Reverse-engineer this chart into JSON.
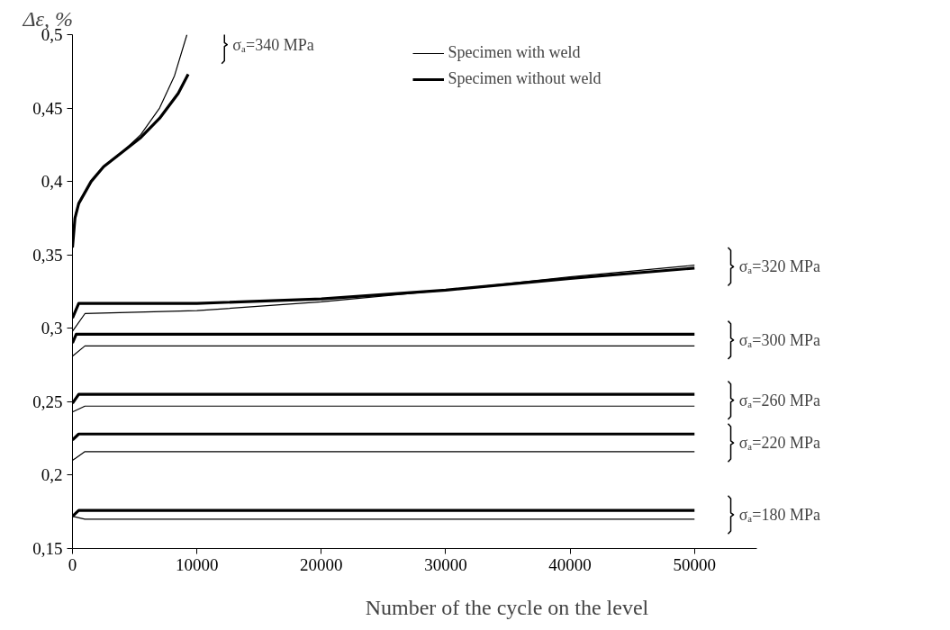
{
  "chart_data": {
    "type": "line",
    "xlabel": "Number of the cycle on the level",
    "ylabel": "Δε, %",
    "xlim": [
      0,
      55000
    ],
    "ylim": [
      0.15,
      0.5
    ],
    "xticks": [
      0,
      10000,
      20000,
      30000,
      40000,
      50000
    ],
    "yticks": [
      {
        "value": 0.15,
        "label": "0,15"
      },
      {
        "value": 0.2,
        "label": "0,2"
      },
      {
        "value": 0.25,
        "label": "0,25"
      },
      {
        "value": 0.3,
        "label": "0,3"
      },
      {
        "value": 0.35,
        "label": "0,35"
      },
      {
        "value": 0.4,
        "label": "0,4"
      },
      {
        "value": 0.45,
        "label": "0,45"
      },
      {
        "value": 0.5,
        "label": "0,5"
      }
    ],
    "grid": false,
    "legend": "top",
    "marker": "none",
    "line_style": "solid",
    "series": [
      {
        "name": "Specimen with weld",
        "color": "#000000",
        "x": [
          0,
          300,
          800,
          1500,
          2500,
          4000,
          5500,
          7000,
          8200,
          9200
        ],
        "values": [
          0.36,
          0.38,
          0.39,
          0.4,
          0.41,
          0.42,
          0.432,
          0.45,
          0.472,
          0.5
        ]
      },
      {
        "name": "Specimen without weld",
        "color": "#000000",
        "x": [
          0,
          200,
          500,
          1500,
          2500,
          4000,
          5500,
          7000,
          8500,
          9300
        ],
        "values": [
          0.355,
          0.375,
          0.385,
          0.4,
          0.41,
          0.42,
          0.43,
          0.443,
          0.46,
          0.473
        ]
      },
      {
        "color": "#000000",
        "x": [
          0,
          1000,
          10000,
          20000,
          30000,
          40000,
          50000
        ],
        "values": [
          0.298,
          0.31,
          0.312,
          0.318,
          0.326,
          0.335,
          0.343
        ]
      },
      {
        "color": "#000000",
        "x": [
          0,
          500,
          10000,
          20000,
          30000,
          40000,
          50000
        ],
        "values": [
          0.307,
          0.317,
          0.317,
          0.32,
          0.326,
          0.334,
          0.341
        ]
      },
      {
        "color": "#000000",
        "x": [
          0,
          1000,
          50000
        ],
        "values": [
          0.281,
          0.288,
          0.288
        ]
      },
      {
        "color": "#000000",
        "x": [
          0,
          300,
          50000
        ],
        "values": [
          0.29,
          0.296,
          0.296
        ]
      },
      {
        "color": "#000000",
        "x": [
          0,
          1000,
          50000
        ],
        "values": [
          0.243,
          0.247,
          0.247
        ]
      },
      {
        "color": "#000000",
        "x": [
          0,
          500,
          50000
        ],
        "values": [
          0.249,
          0.255,
          0.255
        ]
      },
      {
        "color": "#000000",
        "x": [
          0,
          1000,
          50000
        ],
        "values": [
          0.21,
          0.216,
          0.216
        ]
      },
      {
        "color": "#000000",
        "x": [
          0,
          500,
          50000
        ],
        "values": [
          0.224,
          0.228,
          0.228
        ]
      },
      {
        "color": "#000000",
        "x": [
          0,
          1000,
          50000
        ],
        "values": [
          0.172,
          0.17,
          0.17
        ]
      },
      {
        "color": "#000000",
        "x": [
          0,
          500,
          50000
        ],
        "values": [
          0.172,
          0.176,
          0.176
        ]
      }
    ],
    "annotations": [
      "σₐ=340 MPa",
      "σₐ=320 MPa",
      "σₐ=300 MPa",
      "σₐ=260 MPa",
      "σₐ=220 MPa",
      "σₐ=180 MPa"
    ]
  }
}
